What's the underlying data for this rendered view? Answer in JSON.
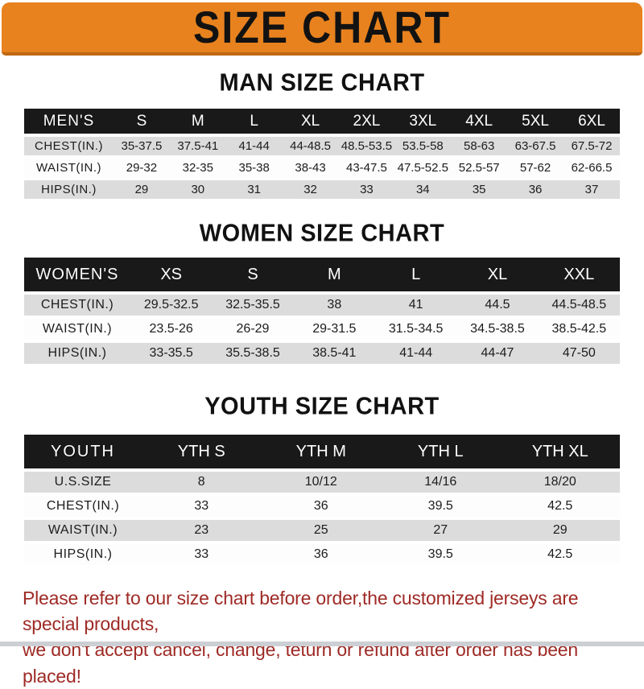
{
  "banner": {
    "title": "SIZE CHART"
  },
  "colors": {
    "banner_orange": "#e8821e",
    "banner_border": "#c06812",
    "header_black": "#191919",
    "row_gray": "#dcdcdc",
    "footer_red": "#9e2a25"
  },
  "sections": [
    {
      "name": "men",
      "title": "MAN SIZE CHART",
      "header_label": "MEN'S",
      "label_col_width": "111px",
      "columns": [
        "S",
        "M",
        "L",
        "XL",
        "2XL",
        "3XL",
        "4XL",
        "5XL",
        "6XL"
      ],
      "rows": [
        {
          "label": "CHEST(IN.)",
          "values": [
            "35-37.5",
            "37.5-41",
            "41-44",
            "44-48.5",
            "48.5-53.5",
            "53.5-58",
            "58-63",
            "63-67.5",
            "67.5-72"
          ]
        },
        {
          "label": "WAIST(IN.)",
          "values": [
            "29-32",
            "32-35",
            "35-38",
            "38-43",
            "43-47.5",
            "47.5-52.5",
            "52.5-57",
            "57-62",
            "62-66.5"
          ]
        },
        {
          "label": "HIPS(IN.)",
          "values": [
            "29",
            "30",
            "31",
            "32",
            "33",
            "34",
            "35",
            "36",
            "37"
          ]
        }
      ]
    },
    {
      "name": "women",
      "title": "WOMEN SIZE CHART",
      "header_label": "WOMEN'S",
      "label_col_width": "132px",
      "columns": [
        "XS",
        "S",
        "M",
        "L",
        "XL",
        "XXL"
      ],
      "rows": [
        {
          "label": "CHEST(IN.)",
          "values": [
            "29.5-32.5",
            "32.5-35.5",
            "38",
            "41",
            "44.5",
            "44.5-48.5"
          ]
        },
        {
          "label": "WAIST(IN.)",
          "values": [
            "23.5-26",
            "26-29",
            "29-31.5",
            "31.5-34.5",
            "34.5-38.5",
            "38.5-42.5"
          ]
        },
        {
          "label": "HIPS(IN.)",
          "values": [
            "33-35.5",
            "35.5-38.5",
            "38.5-41",
            "41-44",
            "44-47",
            "47-50"
          ]
        }
      ]
    },
    {
      "name": "youth",
      "title": "YOUTH SIZE CHART",
      "header_label": "YOUTH",
      "label_col_width": "146px",
      "columns": [
        "YTH S",
        "YTH M",
        "YTH L",
        "YTH XL"
      ],
      "rows": [
        {
          "label": "U.S.SIZE",
          "values": [
            "8",
            "10/12",
            "14/16",
            "18/20"
          ]
        },
        {
          "label": "CHEST(IN.)",
          "values": [
            "33",
            "36",
            "39.5",
            "42.5"
          ]
        },
        {
          "label": "WAIST(IN.)",
          "values": [
            "23",
            "25",
            "27",
            "29"
          ]
        },
        {
          "label": "HIPS(IN.)",
          "values": [
            "33",
            "36",
            "39.5",
            "42.5"
          ]
        }
      ]
    }
  ],
  "footer": {
    "line1": "Please refer to our size chart before order,the customized jerseys are special products,",
    "line2": "we don't accept cancel, change, teturn or refund after order has been placed!"
  }
}
